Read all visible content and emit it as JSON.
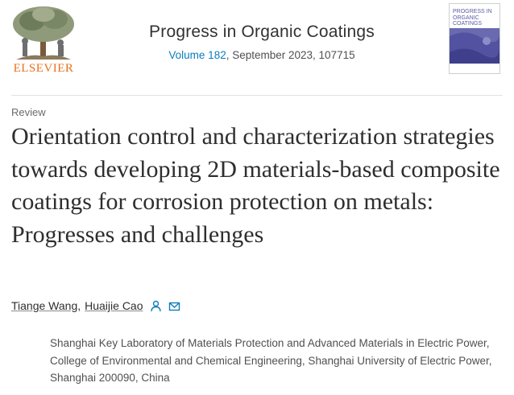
{
  "header": {
    "publisher": "ELSEVIER",
    "journal_title": "Progress in Organic Coatings",
    "volume_label": "Volume 182",
    "issue_rest": ", September 2023, 107715",
    "cover_title": "PROGRESS IN ORGANIC COATINGS"
  },
  "article": {
    "type": "Review",
    "title": "Orientation control and characterization strategies towards developing 2D materials-based composite coatings for corrosion protection on metals: Progresses and challenges",
    "authors": [
      {
        "name": "Tiange Wang"
      },
      {
        "name": "Huaijie Cao"
      }
    ],
    "author_separator": ",",
    "affiliation": "Shanghai Key Laboratory of Materials Protection and Advanced Materials in Electric Power, College of Environmental and Chemical Engineering, Shanghai University of Electric Power, Shanghai 200090, China"
  },
  "icons": {
    "corresponding_author": "person-icon",
    "email": "envelope-icon",
    "publisher_logo": "tree-logo-icon"
  },
  "colors": {
    "publisher_orange": "#e9711c",
    "link_blue": "#0c7dbb",
    "cover_purple": "#5a5aa8"
  }
}
